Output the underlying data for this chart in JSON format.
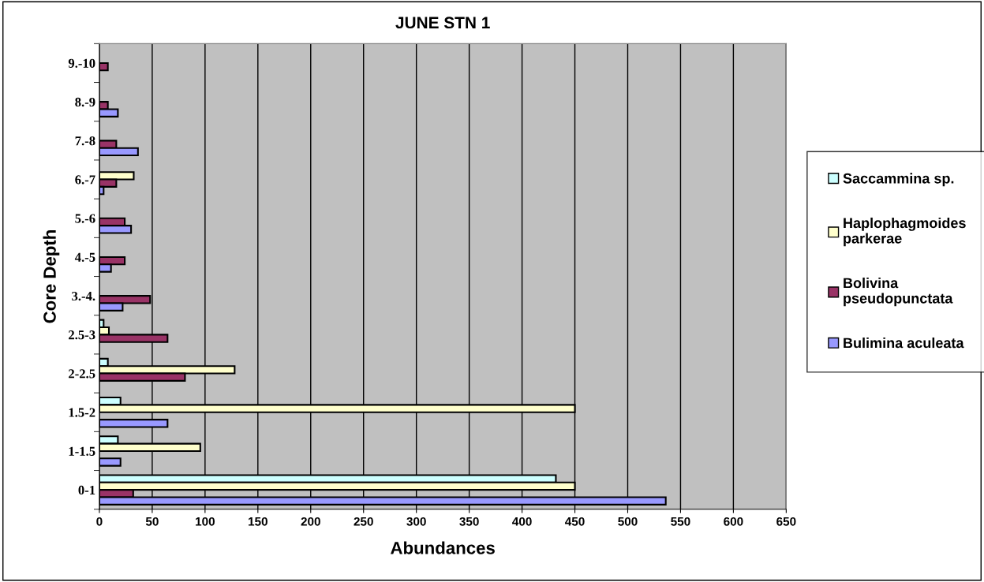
{
  "chart_data": {
    "type": "bar",
    "orientation": "horizontal",
    "title": "JUNE STN 1",
    "xlabel": "Abundances",
    "ylabel": "Core Depth",
    "categories": [
      "9.-10",
      "8.-9",
      "7.-8",
      "6.-7",
      "5.-6",
      "4.-5",
      "3.-4.",
      "2.5-3",
      "2-2.5",
      "1.5-2",
      "1-1.5",
      "0-1"
    ],
    "series": [
      {
        "name": "Saccammina sp.",
        "color": "#ccffff",
        "values": [
          null,
          null,
          null,
          null,
          null,
          null,
          null,
          4,
          8,
          20,
          17.5,
          432
        ]
      },
      {
        "name": "Haplophagmoides\nparkerae",
        "color": "#ffffcc",
        "values": [
          null,
          null,
          null,
          32.5,
          null,
          null,
          null,
          9,
          128,
          450,
          95.5,
          450
        ]
      },
      {
        "name": "Bolivina\npseudopunctata",
        "color": "#993366",
        "values": [
          8,
          8,
          16,
          16,
          24,
          24,
          48,
          64.5,
          81,
          null,
          null,
          32
        ]
      },
      {
        "name": "Bulimina aculeata",
        "color": "#9999ff",
        "values": [
          null,
          17.5,
          36.5,
          4,
          30,
          11,
          22,
          null,
          null,
          64.5,
          20,
          536
        ]
      }
    ],
    "xlim": [
      0,
      650
    ],
    "xticks": [
      0,
      50,
      100,
      150,
      200,
      250,
      300,
      350,
      400,
      450,
      500,
      550,
      600,
      650
    ],
    "grid": "x",
    "legend": "right"
  }
}
